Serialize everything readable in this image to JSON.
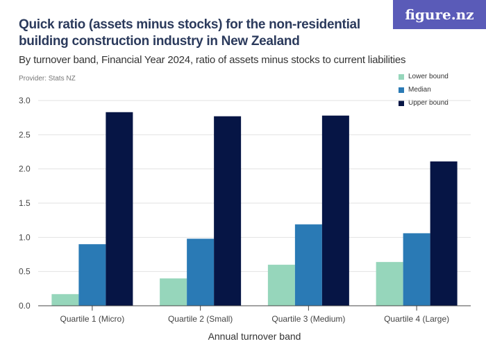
{
  "header": {
    "title": "Quick ratio (assets minus stocks) for the non-residential building construction industry in New Zealand",
    "subtitle": "By turnover band, Financial Year 2024, ratio of assets minus stocks to current liabilities",
    "provider": "Provider: Stats NZ",
    "logo": "figure.nz"
  },
  "chart_data": {
    "type": "bar",
    "title": "Quick ratio (assets minus stocks) for the non-residential building construction industry in New Zealand",
    "xlabel": "Annual turnover band",
    "ylabel": "",
    "ylim": [
      0,
      3
    ],
    "yticks": [
      "0.0",
      "0.5",
      "1.0",
      "1.5",
      "2.0",
      "2.5",
      "3.0"
    ],
    "grid": true,
    "legend_position": "top-right",
    "categories": [
      "Quartile 1 (Micro)",
      "Quartile 2 (Small)",
      "Quartile 3 (Medium)",
      "Quartile 4 (Large)"
    ],
    "series": [
      {
        "name": "Lower bound",
        "color": "#96d6bb",
        "values": [
          0.17,
          0.4,
          0.6,
          0.64
        ]
      },
      {
        "name": "Median",
        "color": "#2a7ab5",
        "values": [
          0.9,
          0.98,
          1.19,
          1.06
        ]
      },
      {
        "name": "Upper bound",
        "color": "#061545",
        "values": [
          2.83,
          2.77,
          2.78,
          2.11
        ]
      }
    ]
  }
}
